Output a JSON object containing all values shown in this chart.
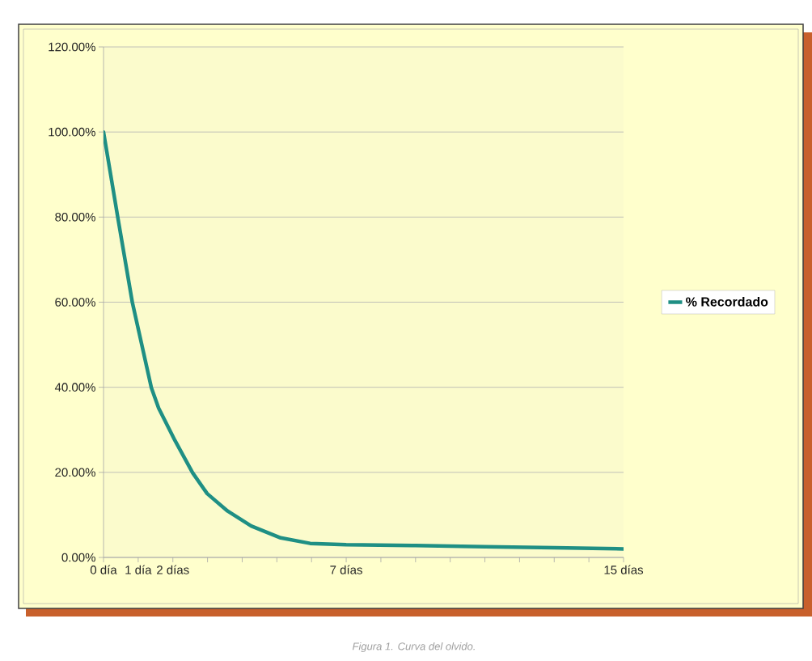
{
  "chart_data": {
    "type": "line",
    "x": [
      0,
      0.41,
      0.83,
      1.38,
      1.59,
      2.06,
      2.57,
      2.99,
      3.58,
      4.26,
      5.11,
      5.96,
      7,
      9,
      11,
      13,
      15
    ],
    "series": [
      {
        "name": "% Recordado",
        "color": "#1f8f84",
        "values": [
          100,
          80,
          60,
          39.9,
          35.1,
          27.5,
          19.9,
          15,
          10.9,
          7.4,
          4.6,
          3.3,
          3,
          2.8,
          2.5,
          2.3,
          2
        ]
      }
    ],
    "xlim": [
      0,
      15
    ],
    "xticks": [
      {
        "value": 0,
        "label": "0 día"
      },
      {
        "value": 1,
        "label": "1 día"
      },
      {
        "value": 2,
        "label": "2 días"
      },
      {
        "value": 3,
        "label": null
      },
      {
        "value": 4,
        "label": null
      },
      {
        "value": 5,
        "label": null
      },
      {
        "value": 6,
        "label": null
      },
      {
        "value": 7,
        "label": "7 días"
      },
      {
        "value": 8,
        "label": null
      },
      {
        "value": 9,
        "label": null
      },
      {
        "value": 10,
        "label": null
      },
      {
        "value": 11,
        "label": null
      },
      {
        "value": 12,
        "label": null
      },
      {
        "value": 13,
        "label": null
      },
      {
        "value": 14,
        "label": null
      },
      {
        "value": 15,
        "label": "15 días"
      }
    ],
    "ylim": [
      0,
      120
    ],
    "yticks": [
      {
        "value": 0,
        "label": "0.00%"
      },
      {
        "value": 20,
        "label": "20.00%"
      },
      {
        "value": 40,
        "label": "40.00%"
      },
      {
        "value": 60,
        "label": "60.00%"
      },
      {
        "value": 80,
        "label": "80.00%"
      },
      {
        "value": 100,
        "label": "100.00%"
      },
      {
        "value": 120,
        "label": "120.00%"
      }
    ],
    "grid": "y",
    "legend": "right",
    "annotations": [
      "Figura 1. Curva del olvido."
    ]
  }
}
